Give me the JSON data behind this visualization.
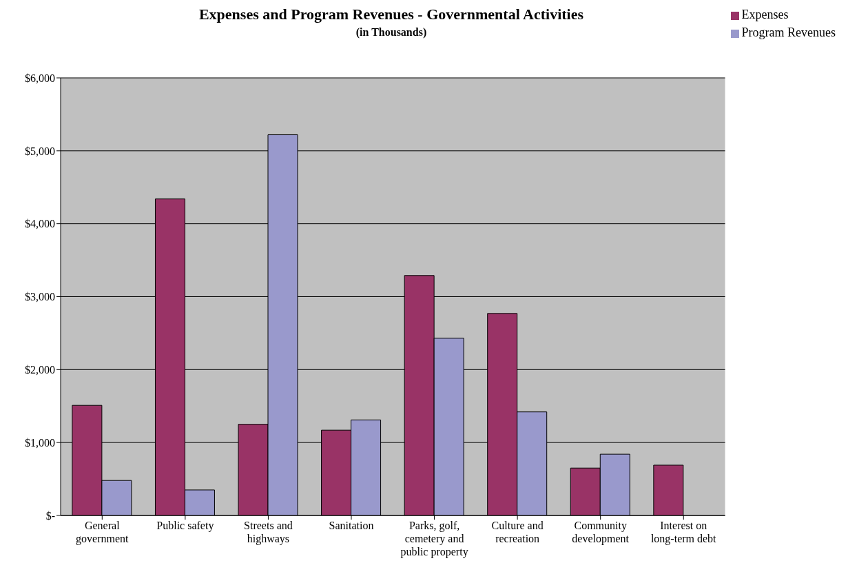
{
  "chart_data": {
    "type": "bar",
    "title": "Expenses and Program Revenues - Governmental Activities",
    "subtitle": "(in Thousands)",
    "categories": [
      "General government",
      "Public safety",
      "Streets and highways",
      "Sanitation",
      "Parks, golf, cemetery and public property",
      "Culture and recreation",
      "Community development",
      "Interest on long-term debt"
    ],
    "series": [
      {
        "name": "Expenses",
        "color": "#993366",
        "values": [
          1510,
          4340,
          1250,
          1170,
          3290,
          2770,
          650,
          690
        ]
      },
      {
        "name": "Program Revenues",
        "color": "#9999cc",
        "values": [
          480,
          350,
          5220,
          1310,
          2430,
          1420,
          840,
          null
        ]
      }
    ],
    "ylim": [
      0,
      6000
    ],
    "yticks": [
      {
        "value": 0,
        "label": "$-"
      },
      {
        "value": 1000,
        "label": "$1,000"
      },
      {
        "value": 2000,
        "label": "$2,000"
      },
      {
        "value": 3000,
        "label": "$3,000"
      },
      {
        "value": 4000,
        "label": "$4,000"
      },
      {
        "value": 5000,
        "label": "$5,000"
      },
      {
        "value": 6000,
        "label": "$6,000"
      }
    ],
    "grid": "y",
    "legend": "top right"
  }
}
